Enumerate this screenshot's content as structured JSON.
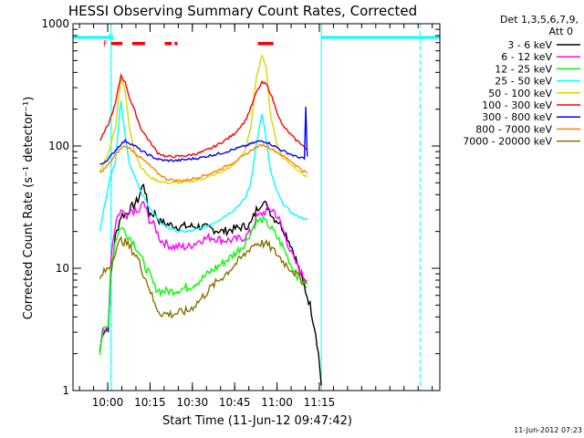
{
  "chart_data": {
    "type": "line",
    "title": "HESSI Observing Summary Count Rates, Corrected",
    "xlabel": "Start Time (11-Jun-12 09:47:42)",
    "ylabel": "Corrected Count Rate (s⁻¹ detector⁻¹)",
    "yscale": "log",
    "ylim": [
      1,
      1000
    ],
    "xlim_minutes": [
      0,
      130
    ],
    "x_ticks": [
      {
        "label": "10:00",
        "minute": 12.3
      },
      {
        "label": "10:15",
        "minute": 27.3
      },
      {
        "label": "10:30",
        "minute": 42.3
      },
      {
        "label": "10:45",
        "minute": 57.3
      },
      {
        "label": "11:00",
        "minute": 72.3
      },
      {
        "label": "11:15",
        "minute": 87.3
      }
    ],
    "y_ticks": [
      {
        "label": "1",
        "value": 1
      },
      {
        "label": "10",
        "value": 10
      },
      {
        "label": "100",
        "value": 100
      },
      {
        "label": "1000",
        "value": 1000
      }
    ],
    "legend_position": "right",
    "legend_header": [
      "Det 1,3,5,6,7,9,",
      "Att 0"
    ],
    "flag_labels": [
      {
        "text": "F",
        "minute": 11.5,
        "color": "#ff0000"
      },
      {
        "text": "N",
        "minute": 13.5,
        "color": "#00ffff"
      }
    ],
    "flare_flags": [
      [
        13.5,
        17.5
      ],
      [
        21.0,
        25.5
      ],
      [
        32.5,
        35.0
      ],
      [
        36.0,
        37.0
      ],
      [
        65.5,
        71.0
      ]
    ],
    "night_intervals": [
      [
        0,
        13.5
      ],
      [
        88.0,
        130
      ]
    ],
    "saa_markers": [
      13.5,
      123.0
    ],
    "series": [
      {
        "name": "3 - 6 keV",
        "color": "#000000",
        "points": [
          [
            9.5,
            2.1
          ],
          [
            10.5,
            3
          ],
          [
            12.5,
            3.3
          ],
          [
            13.5,
            9
          ],
          [
            15,
            18
          ],
          [
            17,
            27
          ],
          [
            19,
            28
          ],
          [
            21,
            32
          ],
          [
            23,
            36
          ],
          [
            25,
            50
          ],
          [
            27,
            28
          ],
          [
            29,
            28
          ],
          [
            31,
            24
          ],
          [
            33,
            23
          ],
          [
            37,
            22
          ],
          [
            41,
            22
          ],
          [
            45,
            22
          ],
          [
            49,
            21
          ],
          [
            53,
            20
          ],
          [
            57,
            21
          ],
          [
            61,
            22
          ],
          [
            63,
            23
          ],
          [
            65,
            30
          ],
          [
            67,
            35
          ],
          [
            69,
            32
          ],
          [
            71,
            26
          ],
          [
            73,
            24
          ],
          [
            75,
            20
          ],
          [
            77,
            16
          ],
          [
            78.5,
            13
          ],
          [
            80,
            10
          ],
          [
            82,
            7
          ],
          [
            84,
            5
          ],
          [
            86,
            3
          ],
          [
            87,
            2
          ],
          [
            88,
            1.1
          ]
        ]
      },
      {
        "name": "6 - 12 keV",
        "color": "#ff00ff",
        "points": [
          [
            9.5,
            2.1
          ],
          [
            10.5,
            3
          ],
          [
            12.5,
            3.3
          ],
          [
            13.5,
            12
          ],
          [
            15,
            22
          ],
          [
            17,
            30
          ],
          [
            19,
            25
          ],
          [
            21,
            30
          ],
          [
            23,
            28
          ],
          [
            25,
            35
          ],
          [
            27,
            25
          ],
          [
            29,
            22
          ],
          [
            31,
            17
          ],
          [
            35,
            15
          ],
          [
            41,
            15
          ],
          [
            45,
            17
          ],
          [
            49,
            18
          ],
          [
            53,
            17
          ],
          [
            57,
            17
          ],
          [
            61,
            18
          ],
          [
            63,
            20
          ],
          [
            65,
            26
          ],
          [
            67,
            28
          ],
          [
            69,
            30
          ],
          [
            71,
            30
          ],
          [
            73,
            25
          ],
          [
            75,
            19
          ],
          [
            77,
            14
          ],
          [
            79,
            11
          ],
          [
            81,
            9
          ],
          [
            83,
            8
          ]
        ]
      },
      {
        "name": "12 - 25 keV",
        "color": "#00ff00",
        "points": [
          [
            9.5,
            2.1
          ],
          [
            10.5,
            3
          ],
          [
            12.5,
            3.3
          ],
          [
            13.5,
            10
          ],
          [
            15,
            17
          ],
          [
            17,
            22
          ],
          [
            19,
            19
          ],
          [
            21,
            17
          ],
          [
            23,
            14
          ],
          [
            25,
            11
          ],
          [
            27,
            9
          ],
          [
            29,
            7
          ],
          [
            31,
            6.5
          ],
          [
            35,
            6.5
          ],
          [
            41,
            7
          ],
          [
            45,
            8
          ],
          [
            49,
            9.5
          ],
          [
            53,
            11
          ],
          [
            57,
            13
          ],
          [
            61,
            16
          ],
          [
            63,
            20
          ],
          [
            65,
            24
          ],
          [
            67,
            25
          ],
          [
            69,
            23
          ],
          [
            71,
            20
          ],
          [
            73,
            17
          ],
          [
            75,
            14
          ],
          [
            77,
            11
          ],
          [
            79,
            9
          ],
          [
            81,
            8
          ],
          [
            83,
            7
          ]
        ]
      },
      {
        "name": "25 - 50 keV",
        "color": "#00ffff",
        "points": [
          [
            9.5,
            20
          ],
          [
            12.5,
            48
          ],
          [
            15,
            75
          ],
          [
            17,
            240
          ],
          [
            18.5,
            120
          ],
          [
            20,
            72
          ],
          [
            22,
            56
          ],
          [
            24,
            42
          ],
          [
            27,
            32
          ],
          [
            30,
            25
          ],
          [
            33,
            22
          ],
          [
            37,
            20
          ],
          [
            41,
            20
          ],
          [
            45,
            21
          ],
          [
            49,
            23
          ],
          [
            53,
            26
          ],
          [
            57,
            30
          ],
          [
            61,
            37
          ],
          [
            63,
            50
          ],
          [
            65,
            105
          ],
          [
            67,
            185
          ],
          [
            68.5,
            110
          ],
          [
            70,
            62
          ],
          [
            72,
            44
          ],
          [
            74,
            35
          ],
          [
            77,
            29
          ],
          [
            79,
            27
          ],
          [
            81,
            26
          ],
          [
            83,
            25
          ]
        ]
      },
      {
        "name": "50 - 100 keV",
        "color": "#d8d800",
        "points": [
          [
            9.5,
            60
          ],
          [
            12.5,
            88
          ],
          [
            15,
            140
          ],
          [
            17,
            360
          ],
          [
            18.5,
            280
          ],
          [
            20,
            140
          ],
          [
            22,
            88
          ],
          [
            24,
            68
          ],
          [
            27,
            56
          ],
          [
            30,
            52
          ],
          [
            33,
            50
          ],
          [
            37,
            50
          ],
          [
            41,
            51
          ],
          [
            45,
            53
          ],
          [
            49,
            57
          ],
          [
            53,
            62
          ],
          [
            57,
            70
          ],
          [
            61,
            92
          ],
          [
            63,
            140
          ],
          [
            65,
            370
          ],
          [
            67,
            560
          ],
          [
            68.5,
            430
          ],
          [
            70,
            180
          ],
          [
            72,
            110
          ],
          [
            74,
            82
          ],
          [
            77,
            72
          ],
          [
            79,
            66
          ],
          [
            81,
            60
          ],
          [
            83,
            56
          ]
        ]
      },
      {
        "name": "100 - 300 keV",
        "color": "#ff0000",
        "points": [
          [
            9.5,
            110
          ],
          [
            12.5,
            150
          ],
          [
            15,
            220
          ],
          [
            17,
            380
          ],
          [
            18.5,
            330
          ],
          [
            20,
            250
          ],
          [
            22,
            190
          ],
          [
            24,
            140
          ],
          [
            27,
            110
          ],
          [
            30,
            88
          ],
          [
            33,
            82
          ],
          [
            37,
            82
          ],
          [
            41,
            84
          ],
          [
            45,
            88
          ],
          [
            49,
            96
          ],
          [
            53,
            108
          ],
          [
            57,
            125
          ],
          [
            61,
            160
          ],
          [
            63,
            205
          ],
          [
            65,
            275
          ],
          [
            67,
            330
          ],
          [
            68.5,
            320
          ],
          [
            70,
            270
          ],
          [
            72,
            200
          ],
          [
            74,
            150
          ],
          [
            77,
            125
          ],
          [
            79,
            112
          ],
          [
            81,
            104
          ],
          [
            83,
            92
          ]
        ]
      },
      {
        "name": "300 - 800 keV",
        "color": "#0000ff",
        "points": [
          [
            9.5,
            70
          ],
          [
            12.5,
            78
          ],
          [
            15,
            92
          ],
          [
            17,
            104
          ],
          [
            18.5,
            110
          ],
          [
            20,
            106
          ],
          [
            22,
            100
          ],
          [
            24,
            92
          ],
          [
            27,
            84
          ],
          [
            30,
            78
          ],
          [
            33,
            76
          ],
          [
            37,
            76
          ],
          [
            41,
            78
          ],
          [
            45,
            80
          ],
          [
            49,
            84
          ],
          [
            53,
            88
          ],
          [
            57,
            94
          ],
          [
            61,
            100
          ],
          [
            63,
            104
          ],
          [
            65,
            108
          ],
          [
            67,
            110
          ],
          [
            68.5,
            108
          ],
          [
            70,
            104
          ],
          [
            72,
            98
          ],
          [
            74,
            92
          ],
          [
            77,
            86
          ],
          [
            79,
            82
          ],
          [
            81,
            80
          ],
          [
            82,
            78
          ],
          [
            82.5,
            210
          ],
          [
            83,
            82
          ]
        ]
      },
      {
        "name": "800 - 7000 keV",
        "color": "#ff8000",
        "points": [
          [
            9.5,
            60
          ],
          [
            12.5,
            70
          ],
          [
            15,
            84
          ],
          [
            17,
            96
          ],
          [
            18.5,
            100
          ],
          [
            20,
            96
          ],
          [
            22,
            88
          ],
          [
            24,
            80
          ],
          [
            27,
            70
          ],
          [
            30,
            60
          ],
          [
            33,
            54
          ],
          [
            37,
            52
          ],
          [
            41,
            53
          ],
          [
            45,
            56
          ],
          [
            49,
            60
          ],
          [
            53,
            66
          ],
          [
            57,
            74
          ],
          [
            61,
            84
          ],
          [
            63,
            92
          ],
          [
            65,
            98
          ],
          [
            67,
            102
          ],
          [
            68.5,
            100
          ],
          [
            70,
            96
          ],
          [
            72,
            90
          ],
          [
            74,
            84
          ],
          [
            77,
            76
          ],
          [
            79,
            70
          ],
          [
            81,
            64
          ],
          [
            83,
            60
          ]
        ]
      },
      {
        "name": "7000 - 20000 keV",
        "color": "#8b7000",
        "points": [
          [
            9.5,
            8
          ],
          [
            10.5,
            9
          ],
          [
            12.5,
            10
          ],
          [
            13.5,
            11
          ],
          [
            15,
            14
          ],
          [
            17,
            17
          ],
          [
            19,
            16
          ],
          [
            21,
            14
          ],
          [
            23,
            12
          ],
          [
            25,
            9
          ],
          [
            27,
            7
          ],
          [
            29,
            5
          ],
          [
            31,
            4.3
          ],
          [
            35,
            4.2
          ],
          [
            41,
            4.5
          ],
          [
            45,
            5.5
          ],
          [
            49,
            7
          ],
          [
            53,
            8.5
          ],
          [
            57,
            10.5
          ],
          [
            61,
            13
          ],
          [
            63,
            15
          ],
          [
            65,
            16
          ],
          [
            67,
            16
          ],
          [
            69,
            15.5
          ],
          [
            71,
            14
          ],
          [
            73,
            12.5
          ],
          [
            75,
            11
          ],
          [
            77,
            10
          ],
          [
            79,
            9
          ],
          [
            81,
            8
          ],
          [
            83,
            7.5
          ]
        ]
      }
    ]
  },
  "footer_date": "11-Jun-2012 07:23"
}
